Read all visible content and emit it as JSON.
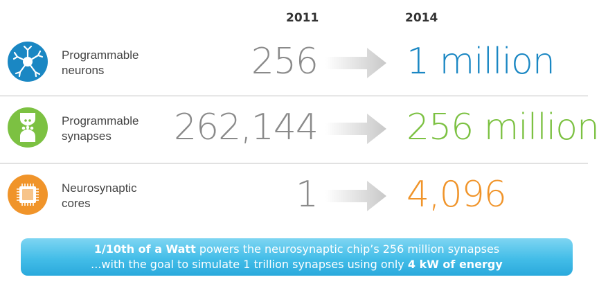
{
  "years": {
    "old": "2011",
    "new": "2014"
  },
  "colors": {
    "blue": "#1a87c3",
    "green": "#7cc142",
    "orange": "#f0942a"
  },
  "rows": [
    {
      "icon": "neuron-icon",
      "label_line1": "Programmable",
      "label_line2": "neurons",
      "old_value": "256",
      "new_value": "1 million",
      "color": "#1a87c3"
    },
    {
      "icon": "synapse-icon",
      "label_line1": "Programmable",
      "label_line2": "synapses",
      "old_value": "262,144",
      "new_value": "256 million",
      "color": "#7cc142"
    },
    {
      "icon": "chip-icon",
      "label_line1": "Neurosynaptic",
      "label_line2": "cores",
      "old_value": "1",
      "new_value": "4,096",
      "color": "#f0942a"
    }
  ],
  "banner": {
    "line1_bold": "1/10th of a Watt",
    "line1_rest": " powers the neurosynaptic chip’s 256 million synapses",
    "line2_rest": "...with the goal to simulate 1 trillion synapses using only ",
    "line2_bold": "4 kW of energy"
  }
}
